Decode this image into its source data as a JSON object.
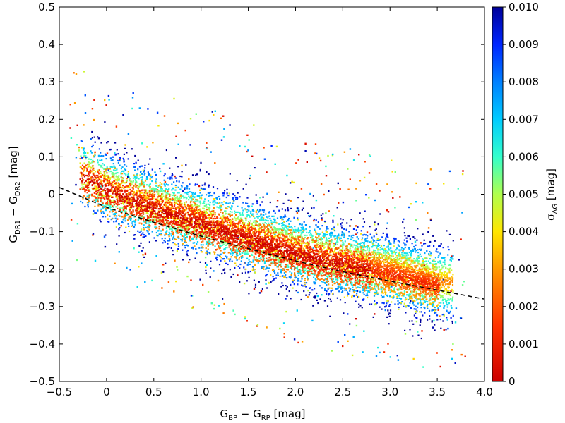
{
  "chart_data": {
    "type": "scatter",
    "xlabel": {
      "main": "G",
      "sub1": "BP",
      "mid": " − G",
      "sub2": "RP",
      "unit": " [mag]"
    },
    "ylabel": {
      "main": "G",
      "sub1": "DR1",
      "mid": " − G",
      "sub2": "DR2",
      "unit": " [mag]"
    },
    "xlim": [
      -0.5,
      4.0
    ],
    "ylim": [
      -0.5,
      0.5
    ],
    "x_ticks": [
      -0.5,
      0,
      0.5,
      1.0,
      1.5,
      2.0,
      2.5,
      3.0,
      3.5,
      4.0
    ],
    "x_tick_labels": [
      "−0.5",
      "0",
      "0.5",
      "1.0",
      "1.5",
      "2.0",
      "2.5",
      "3.0",
      "3.5",
      "4.0"
    ],
    "y_ticks": [
      -0.5,
      -0.4,
      -0.3,
      -0.2,
      -0.1,
      0,
      0.1,
      0.2,
      0.3,
      0.4,
      0.5
    ],
    "y_tick_labels": [
      "−0.5",
      "−0.4",
      "−0.3",
      "−0.2",
      "−0.1",
      "0",
      "0.1",
      "0.2",
      "0.3",
      "0.4",
      "0.5"
    ],
    "colorbar": {
      "label_main": "σ",
      "label_sub": "ΔG",
      "label_unit": " [mag]",
      "range": [
        0,
        0.01
      ],
      "colormap": "jet_r",
      "ticks": [
        0,
        0.001,
        0.002,
        0.003,
        0.004,
        0.005,
        0.006,
        0.007,
        0.008,
        0.009,
        0.01
      ],
      "tick_labels": [
        "0",
        "0.001",
        "0.002",
        "0.003",
        "0.004",
        "0.005",
        "0.006",
        "0.007",
        "0.008",
        "0.009",
        "0.010"
      ]
    },
    "fit_line": {
      "style": "dashed",
      "color": "#000000",
      "points": [
        {
          "x": -0.5,
          "y": 0.018
        },
        {
          "x": 0.0,
          "y": -0.035
        },
        {
          "x": 0.5,
          "y": -0.075
        },
        {
          "x": 1.0,
          "y": -0.112
        },
        {
          "x": 1.5,
          "y": -0.145
        },
        {
          "x": 2.0,
          "y": -0.178
        },
        {
          "x": 2.5,
          "y": -0.207
        },
        {
          "x": 3.0,
          "y": -0.232
        },
        {
          "x": 3.5,
          "y": -0.256
        },
        {
          "x": 4.0,
          "y": -0.28
        }
      ]
    },
    "density_ridge": {
      "points": [
        {
          "x": -0.3,
          "y": 0.04
        },
        {
          "x": -0.2,
          "y": 0.03
        },
        {
          "x": 0.0,
          "y": 0.0
        },
        {
          "x": 0.5,
          "y": -0.05
        },
        {
          "x": 1.0,
          "y": -0.09
        },
        {
          "x": 1.5,
          "y": -0.13
        },
        {
          "x": 2.0,
          "y": -0.17
        },
        {
          "x": 2.5,
          "y": -0.2
        },
        {
          "x": 3.0,
          "y": -0.225
        },
        {
          "x": 3.5,
          "y": -0.255
        }
      ],
      "scatter_width_mag": {
        "core": 0.02,
        "halo": 0.09
      }
    },
    "grid": false
  }
}
